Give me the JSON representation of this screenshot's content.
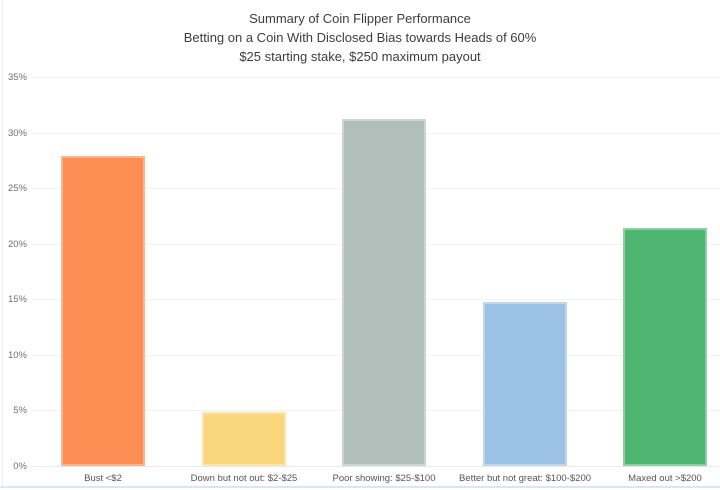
{
  "chart_data": {
    "type": "bar",
    "title_lines": [
      "Summary of Coin Flipper Performance",
      "Betting on a Coin With Disclosed Bias towards Heads of 60%",
      "$25 starting stake, $250 maximum payout"
    ],
    "categories": [
      "Bust <$2",
      "Down but not out: $2-$25",
      "Poor showing: $25-$100",
      "Better but not great: $100-$200",
      "Maxed out >$200"
    ],
    "values": [
      27.9,
      4.9,
      31.2,
      14.8,
      21.4
    ],
    "bar_colors": [
      "#fc8d53",
      "#fad67e",
      "#b1bfba",
      "#9bc2e4",
      "#4fb573"
    ],
    "ylim": [
      0,
      35
    ],
    "ytick_values": [
      0,
      5,
      10,
      15,
      20,
      25,
      30,
      35
    ],
    "ytick_labels": [
      "0%",
      "5%",
      "10%",
      "15%",
      "20%",
      "25%",
      "30%",
      "35%"
    ],
    "xlabel": "",
    "ylabel": "",
    "grid": true,
    "legend_position": "none"
  },
  "colors": {
    "gridline": "#f2f2f2",
    "axis_line": "#e9e9e9",
    "title_text": "#3d3d3d",
    "tick_text": "#6f6f6f",
    "category_text": "#555555",
    "bottom_border": "#dce6f0",
    "left_border": "#e9e9e9"
  }
}
